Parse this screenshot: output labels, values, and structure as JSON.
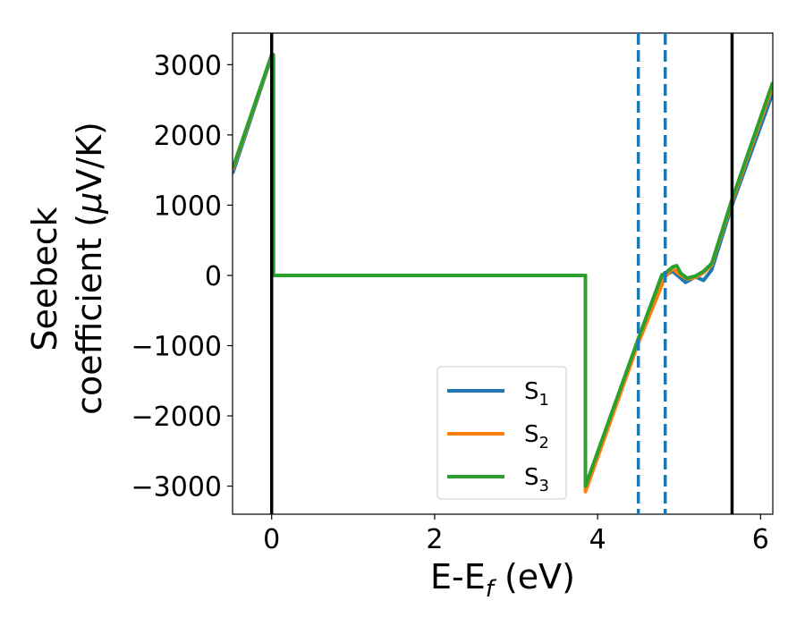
{
  "chart_data": {
    "type": "line",
    "title": "",
    "xlabel": "E-E",
    "xlabel_sub": "f",
    "xlabel_unit": " (eV)",
    "ylabel_line1": "Seebeck",
    "ylabel_line2_prefix": "coefficient  (",
    "ylabel_mu": "μ",
    "ylabel_line2_suffix": "V/K)",
    "xlim": [
      -0.48,
      6.15
    ],
    "ylim": [
      -3400,
      3450
    ],
    "x_ticks": [
      0,
      2,
      4,
      6
    ],
    "x_tick_labels": [
      "0",
      "2",
      "4",
      "6"
    ],
    "y_ticks": [
      3000,
      2000,
      1000,
      0,
      -1000,
      -2000,
      -3000
    ],
    "y_tick_labels": [
      "3000",
      "2000",
      "1000",
      "0",
      "−1000",
      "−2000",
      "−3000"
    ],
    "grid": false,
    "legend_position": "lower-right",
    "vertical_lines": [
      {
        "x": 0,
        "style": "solid",
        "color": "#000000"
      },
      {
        "x": 5.65,
        "style": "solid",
        "color": "#000000"
      },
      {
        "x": 4.5,
        "style": "dashed",
        "color": "#1f77b4"
      },
      {
        "x": 4.83,
        "style": "dashed",
        "color": "#1f77b4"
      }
    ],
    "series": [
      {
        "name": "S",
        "sub": "1",
        "color": "#1f77b4",
        "points": [
          [
            -0.48,
            1450
          ],
          [
            0.0,
            3120
          ],
          [
            0.02,
            3120
          ],
          [
            0.02,
            0
          ],
          [
            3.85,
            0
          ],
          [
            3.85,
            -3060
          ],
          [
            4.5,
            -940
          ],
          [
            4.83,
            0
          ],
          [
            4.92,
            60
          ],
          [
            5.0,
            -20
          ],
          [
            5.08,
            -100
          ],
          [
            5.2,
            -20
          ],
          [
            5.3,
            -70
          ],
          [
            5.4,
            80
          ],
          [
            5.65,
            1000
          ],
          [
            6.15,
            2600
          ]
        ]
      },
      {
        "name": "S",
        "sub": "2",
        "color": "#ff7f0e",
        "points": [
          [
            -0.48,
            1500
          ],
          [
            0.0,
            3130
          ],
          [
            0.02,
            3130
          ],
          [
            0.02,
            0
          ],
          [
            3.85,
            0
          ],
          [
            3.85,
            -3080
          ],
          [
            4.5,
            -960
          ],
          [
            4.83,
            -20
          ],
          [
            4.92,
            100
          ],
          [
            5.0,
            20
          ],
          [
            5.1,
            -50
          ],
          [
            5.2,
            -30
          ],
          [
            5.3,
            40
          ],
          [
            5.4,
            150
          ],
          [
            5.65,
            1050
          ],
          [
            6.15,
            2700
          ]
        ]
      },
      {
        "name": "S",
        "sub": "3",
        "color": "#2ca02c",
        "points": [
          [
            -0.48,
            1520
          ],
          [
            0.0,
            3140
          ],
          [
            0.02,
            3140
          ],
          [
            0.02,
            0
          ],
          [
            3.85,
            0
          ],
          [
            3.85,
            -3000
          ],
          [
            4.5,
            -900
          ],
          [
            4.79,
            10
          ],
          [
            4.83,
            30
          ],
          [
            4.92,
            120
          ],
          [
            4.97,
            140
          ],
          [
            5.02,
            30
          ],
          [
            5.1,
            -40
          ],
          [
            5.2,
            -10
          ],
          [
            5.3,
            60
          ],
          [
            5.4,
            170
          ],
          [
            5.65,
            1080
          ],
          [
            6.15,
            2750
          ]
        ]
      }
    ]
  }
}
